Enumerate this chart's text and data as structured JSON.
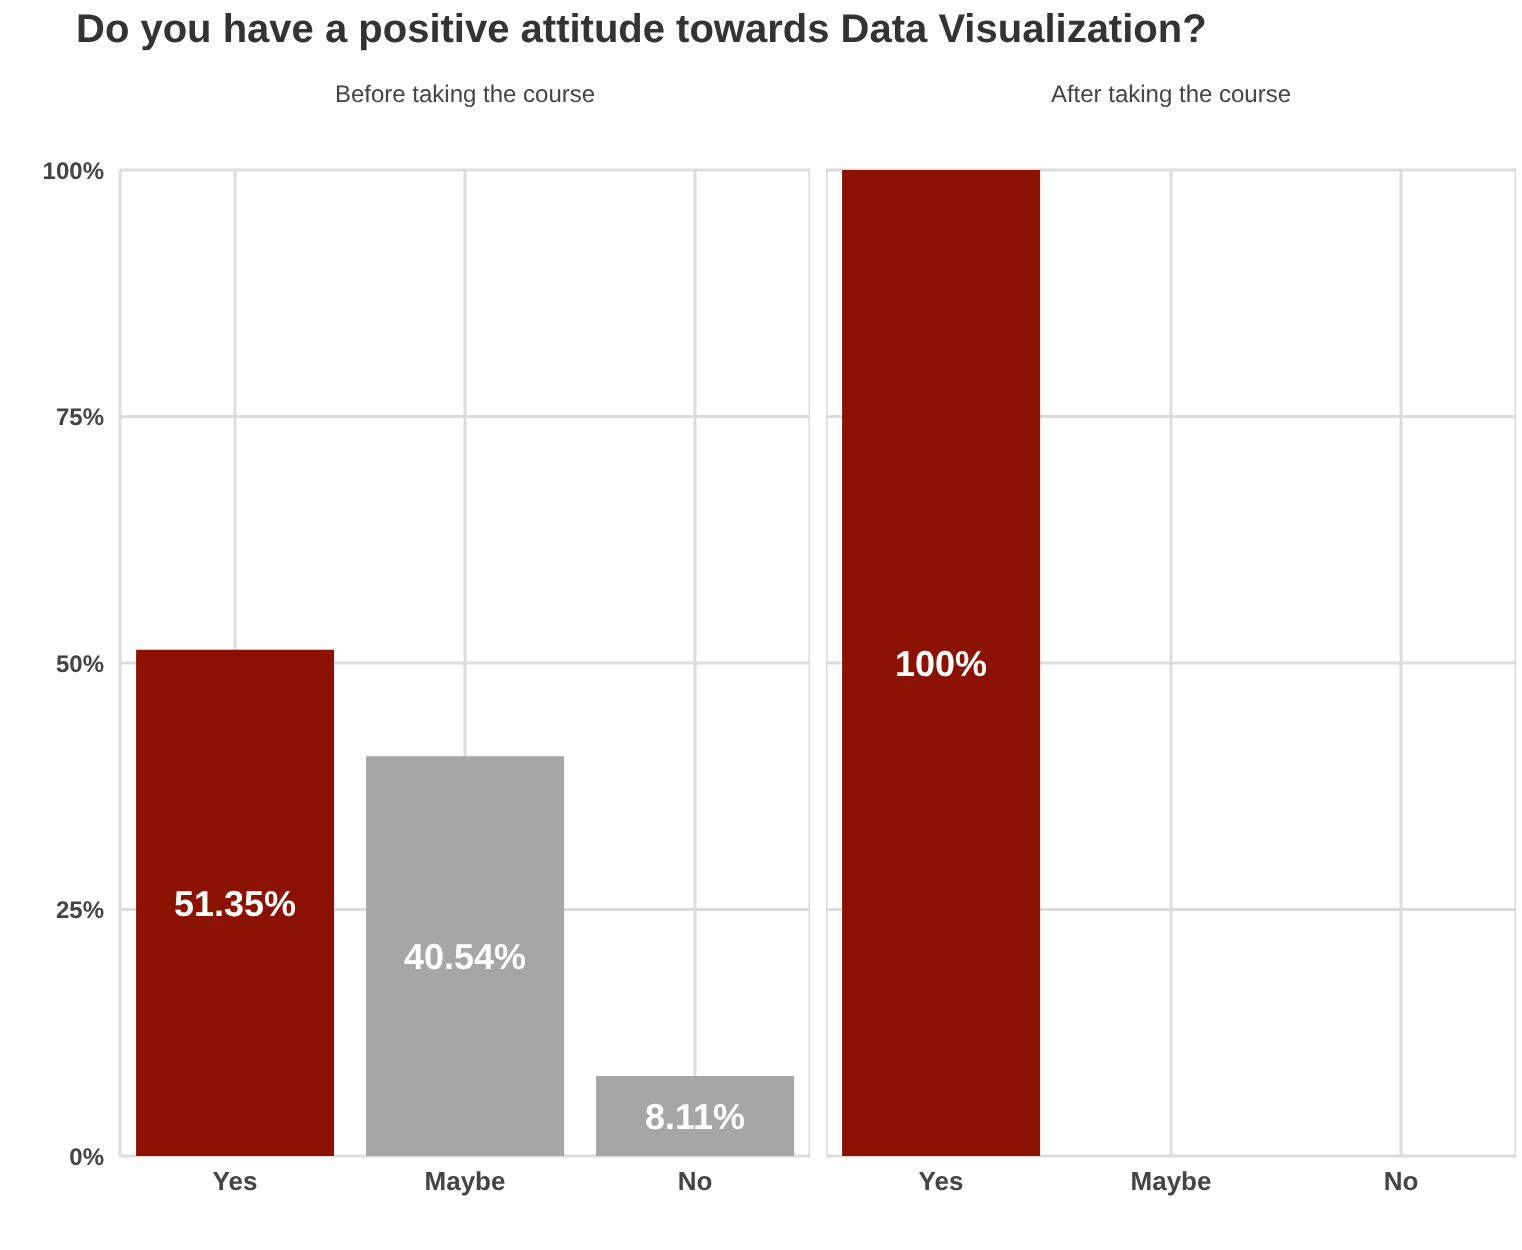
{
  "chart_data": [
    {
      "type": "bar",
      "title": "Do you have a positive attitude towards Data Visualization?",
      "subtitle": "Before taking the course",
      "categories": [
        "Yes",
        "Maybe",
        "No"
      ],
      "values": [
        51.35,
        40.54,
        8.11
      ],
      "colors": [
        "#8b1100",
        "#a6a6a6",
        "#a6a6a6"
      ],
      "value_labels": [
        "51.35%",
        "40.54%",
        "8.11%"
      ],
      "ylim": [
        0,
        100
      ],
      "yticks": [
        {
          "value": 0,
          "label": "0%"
        },
        {
          "value": 25,
          "label": "25%"
        },
        {
          "value": 50,
          "label": "50%"
        },
        {
          "value": 75,
          "label": "75%"
        },
        {
          "value": 100,
          "label": "100%"
        }
      ],
      "grid": true
    },
    {
      "type": "bar",
      "subtitle": "After taking the course",
      "categories": [
        "Yes",
        "Maybe",
        "No"
      ],
      "values": [
        100,
        null,
        null
      ],
      "colors": [
        "#8b1100",
        "#a6a6a6",
        "#a6a6a6"
      ],
      "value_labels": [
        "100%",
        null,
        null
      ],
      "ylim": [
        0,
        100
      ],
      "yticks": [
        {
          "value": 0,
          "label": null
        },
        {
          "value": 25,
          "label": null
        },
        {
          "value": 50,
          "label": null
        },
        {
          "value": 75,
          "label": null
        },
        {
          "value": 100,
          "label": null
        }
      ],
      "grid": true,
      "tick_labels": "x"
    }
  ]
}
